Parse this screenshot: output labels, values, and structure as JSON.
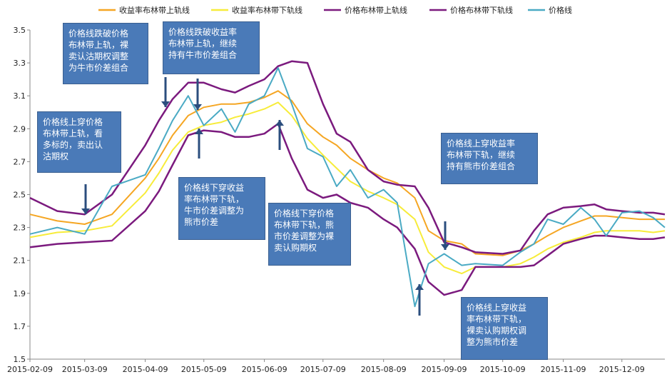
{
  "chart_data": {
    "type": "line",
    "title": "",
    "xlabel": "",
    "ylabel": "",
    "ylim": [
      1.5,
      3.5
    ],
    "yticks": [
      "1.5",
      "1.7",
      "1.9",
      "2.1",
      "2.3",
      "2.5",
      "2.7",
      "2.9",
      "3.1",
      "3.3",
      "3.5"
    ],
    "xticks": [
      "2015-02-09",
      "2015-03-09",
      "2015-04-09",
      "2015-05-09",
      "2015-06-09",
      "2015-07-09",
      "2015-08-09",
      "2015-09-09",
      "2015-10-09",
      "2015-11-09",
      "2015-12-09"
    ],
    "grid": false,
    "legend_position": "top",
    "x_dates": [
      "2015-02-09",
      "2015-02-23",
      "2015-03-09",
      "2015-03-23",
      "2015-04-09",
      "2015-04-16",
      "2015-04-23",
      "2015-05-01",
      "2015-05-09",
      "2015-05-18",
      "2015-05-25",
      "2015-06-01",
      "2015-06-09",
      "2015-06-16",
      "2015-06-23",
      "2015-07-01",
      "2015-07-09",
      "2015-07-16",
      "2015-07-23",
      "2015-08-01",
      "2015-08-09",
      "2015-08-16",
      "2015-08-25",
      "2015-09-01",
      "2015-09-09",
      "2015-09-18",
      "2015-09-25",
      "2015-10-09",
      "2015-10-18",
      "2015-10-25",
      "2015-11-01",
      "2015-11-09",
      "2015-11-18",
      "2015-11-25",
      "2015-12-01",
      "2015-12-09",
      "2015-12-18",
      "2015-12-25",
      "2015-12-31"
    ],
    "series": [
      {
        "name": "收益率布林带上轨线",
        "color": "#f5a623",
        "width": 2,
        "values": [
          2.38,
          2.34,
          2.32,
          2.38,
          2.6,
          2.72,
          2.86,
          2.98,
          3.03,
          3.05,
          3.05,
          3.06,
          3.09,
          3.13,
          3.07,
          2.93,
          2.85,
          2.8,
          2.72,
          2.65,
          2.6,
          2.57,
          2.48,
          2.28,
          2.22,
          2.2,
          2.14,
          2.13,
          2.16,
          2.2,
          2.25,
          2.3,
          2.34,
          2.37,
          2.37,
          2.36,
          2.35,
          2.35,
          2.35
        ]
      },
      {
        "name": "收益率布林带下轨线",
        "color": "#f7ec3a",
        "width": 2,
        "values": [
          2.24,
          2.27,
          2.28,
          2.31,
          2.51,
          2.63,
          2.77,
          2.88,
          2.92,
          2.94,
          2.97,
          2.99,
          3.02,
          3.06,
          2.98,
          2.84,
          2.74,
          2.66,
          2.58,
          2.52,
          2.48,
          2.44,
          2.35,
          2.15,
          2.06,
          2.02,
          2.06,
          2.06,
          2.08,
          2.12,
          2.17,
          2.21,
          2.24,
          2.27,
          2.28,
          2.28,
          2.28,
          2.27,
          2.28
        ]
      },
      {
        "name": "价格布林带上轨线",
        "color": "#7b1a7e",
        "width": 2.5,
        "values": [
          2.48,
          2.4,
          2.38,
          2.5,
          2.8,
          2.95,
          3.08,
          3.18,
          3.18,
          3.14,
          3.12,
          3.16,
          3.2,
          3.28,
          3.31,
          3.3,
          3.05,
          2.87,
          2.82,
          2.65,
          2.58,
          2.56,
          2.55,
          2.42,
          2.21,
          2.18,
          2.15,
          2.14,
          2.16,
          2.28,
          2.38,
          2.42,
          2.43,
          2.44,
          2.41,
          2.4,
          2.39,
          2.39,
          2.38
        ]
      },
      {
        "name": "价格布林带下轨线",
        "color": "#7b1a7e",
        "width": 2.5,
        "values": [
          2.18,
          2.2,
          2.21,
          2.22,
          2.4,
          2.52,
          2.68,
          2.86,
          2.89,
          2.88,
          2.85,
          2.85,
          2.87,
          2.93,
          2.72,
          2.53,
          2.48,
          2.5,
          2.45,
          2.42,
          2.35,
          2.3,
          2.17,
          1.97,
          1.89,
          1.92,
          2.06,
          2.06,
          2.06,
          2.07,
          2.13,
          2.2,
          2.23,
          2.25,
          2.25,
          2.24,
          2.23,
          2.23,
          2.24
        ]
      },
      {
        "name": "价格线",
        "color": "#4aaac4",
        "width": 2,
        "values": [
          2.26,
          2.3,
          2.26,
          2.55,
          2.62,
          2.78,
          2.95,
          3.1,
          2.92,
          3.02,
          2.88,
          3.05,
          3.1,
          3.27,
          3.05,
          2.78,
          2.73,
          2.55,
          2.65,
          2.48,
          2.53,
          2.45,
          1.82,
          2.08,
          2.14,
          2.07,
          2.08,
          2.07,
          2.15,
          2.2,
          2.35,
          2.32,
          2.42,
          2.35,
          2.25,
          2.39,
          2.4,
          2.36,
          2.3
        ]
      }
    ],
    "annotations": [
      {
        "text": "价格线跌破价格\n布林带上轨，裸\n卖认沽期权调整\n为牛市价差组合"
      },
      {
        "text": "价格线跌破收益率\n布林带上轨，继续\n持有牛市价差组合"
      },
      {
        "text": "价格线上穿价格\n布林带上轨，看\n多标的，卖出认\n沽期权"
      },
      {
        "text": "价格线下穿收益\n率布林带下轨，\n牛市价差调整为\n熊市价差"
      },
      {
        "text": "价格线下穿价格\n布林带下轨，熊\n市价差调整为裸\n卖认购期权"
      },
      {
        "text": "价格线上穿收益率\n布林带下轨，继续\n持有熊市价差组合"
      },
      {
        "text": "价格线上穿收益\n率布林带下轨，\n裸卖认购期权调\n整为熊市价差"
      }
    ]
  }
}
